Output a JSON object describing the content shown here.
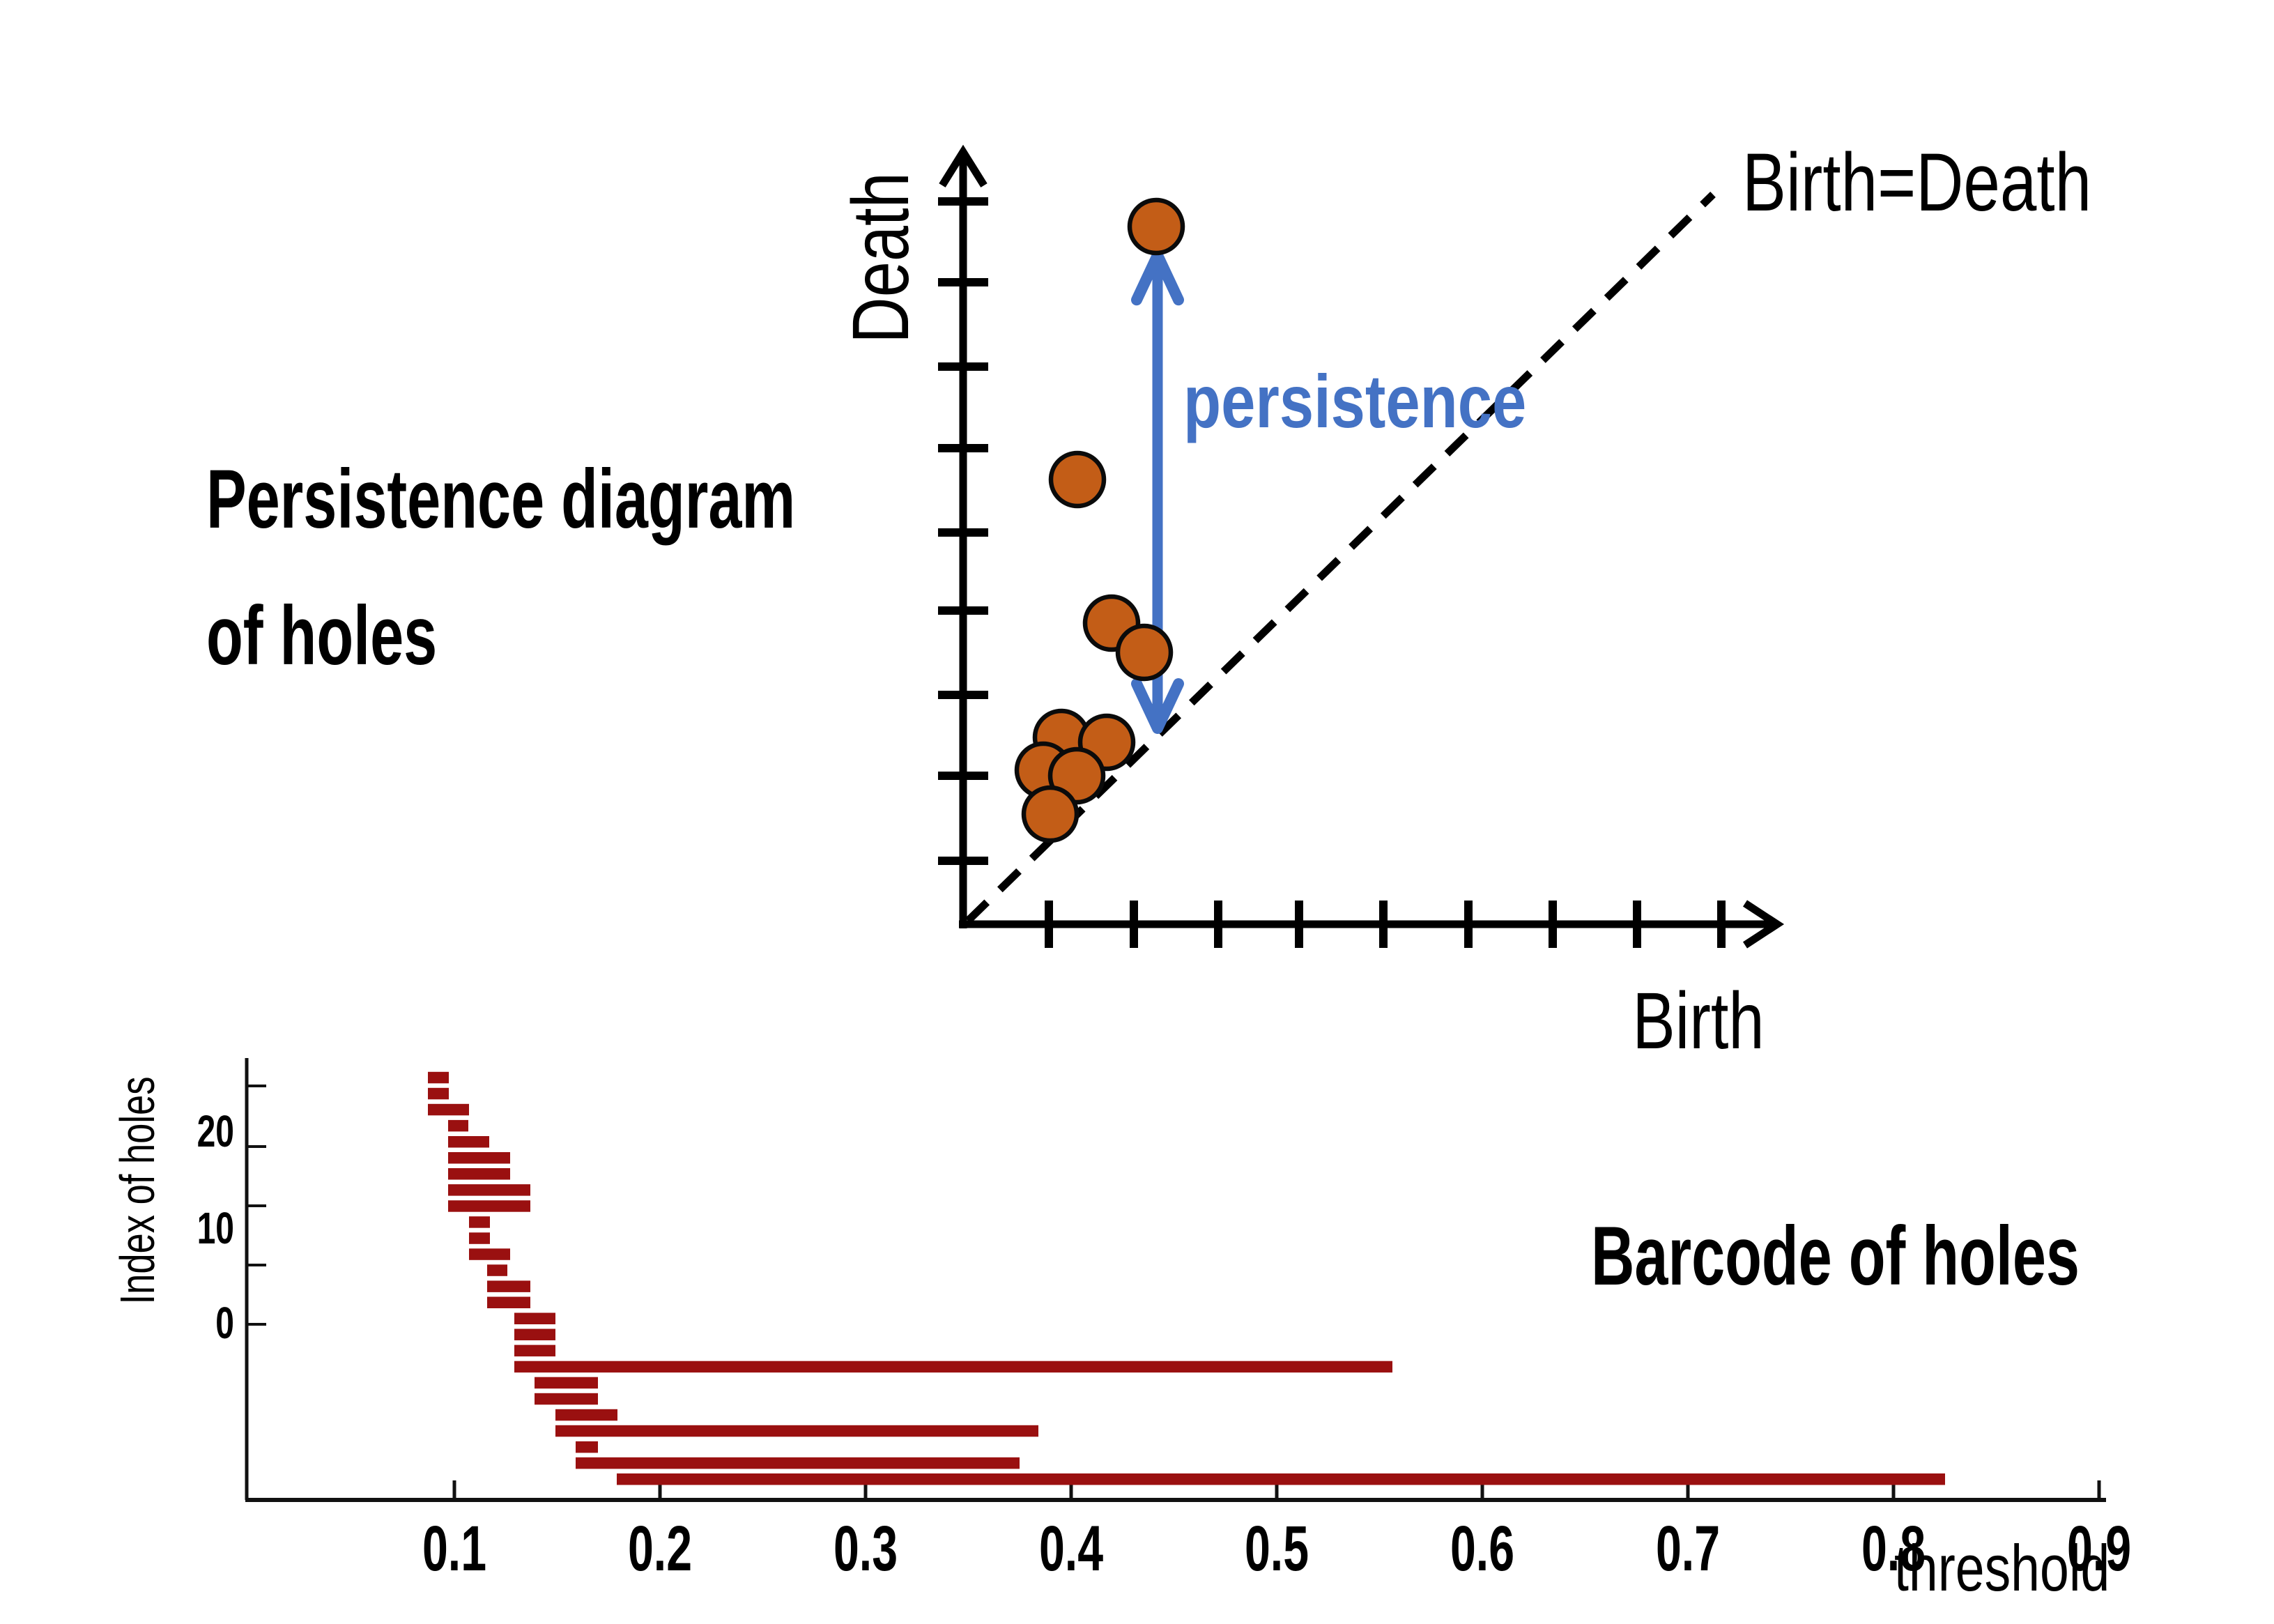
{
  "figure": {
    "background": "#FFFFFF",
    "description": "Persistence diagram and barcode of holes"
  },
  "persistence_diagram": {
    "title_line1": "Persistence diagram",
    "title_line2": "of holes",
    "x_axis_label": "Birth",
    "y_axis_label": "Death",
    "diagonal_label": "Birth=Death",
    "annotation": "persistence"
  },
  "barcode": {
    "title": "Barcode of holes",
    "x_axis_label": "threshold",
    "y_axis_label": "Index of holes",
    "x_tick_labels": [
      "0.1",
      "0.2",
      "0.3",
      "0.4",
      "0.5",
      "0.6",
      "0.7",
      "0.8",
      "0.9"
    ],
    "y_tick_labels": [
      "20",
      "10",
      "0"
    ]
  },
  "colors": {
    "dot_fill": "#C35D17",
    "dot_stroke": "#0B0B0B",
    "bar_fill": "#9A1010",
    "arrow_blue": "#4472C4",
    "axis_black": "#000000",
    "thin_axis": "#111111"
  },
  "chart_data": [
    {
      "type": "scatter",
      "title": "Persistence diagram of holes",
      "xlabel": "Birth",
      "ylabel": "Death",
      "xlim": [
        0.08,
        0.97
      ],
      "ylim": [
        0.08,
        0.97
      ],
      "grid": false,
      "diagonal": "Birth=Death reference line at 45 degrees, dashed",
      "annotation": {
        "text": "persistence",
        "meaning": "vertical double arrow from most persistent point down to the diagonal"
      },
      "points_birth_death": [
        [
          0.228,
          0.869
        ],
        [
          0.134,
          0.562
        ],
        [
          0.175,
          0.388
        ],
        [
          0.214,
          0.353
        ],
        [
          0.115,
          0.25
        ],
        [
          0.169,
          0.244
        ],
        [
          0.093,
          0.21
        ],
        [
          0.133,
          0.203
        ],
        [
          0.102,
          0.157
        ]
      ]
    },
    {
      "type": "bar",
      "orientation": "horizontal",
      "title": "Barcode of holes",
      "xlabel": "threshold",
      "ylabel": "Index of holes",
      "xlim": [
        0.0,
        0.93
      ],
      "x_ticks": [
        0.1,
        0.2,
        0.3,
        0.4,
        0.5,
        0.6,
        0.7,
        0.8,
        0.9
      ],
      "y_tick_values": [
        20,
        10,
        0
      ],
      "grid": false,
      "bars_birth_death_top_to_bottom": [
        [
          0.087,
          0.097
        ],
        [
          0.087,
          0.097
        ],
        [
          0.087,
          0.107
        ],
        [
          0.097,
          0.107
        ],
        [
          0.097,
          0.117
        ],
        [
          0.097,
          0.127
        ],
        [
          0.097,
          0.127
        ],
        [
          0.097,
          0.137
        ],
        [
          0.097,
          0.137
        ],
        [
          0.107,
          0.117
        ],
        [
          0.107,
          0.117
        ],
        [
          0.107,
          0.127
        ],
        [
          0.116,
          0.126
        ],
        [
          0.116,
          0.137
        ],
        [
          0.116,
          0.137
        ],
        [
          0.129,
          0.149
        ],
        [
          0.129,
          0.149
        ],
        [
          0.129,
          0.149
        ],
        [
          0.129,
          0.556
        ],
        [
          0.139,
          0.17
        ],
        [
          0.139,
          0.17
        ],
        [
          0.149,
          0.179
        ],
        [
          0.149,
          0.384
        ],
        [
          0.159,
          0.17
        ],
        [
          0.159,
          0.375
        ],
        [
          0.179,
          0.825
        ]
      ]
    }
  ]
}
